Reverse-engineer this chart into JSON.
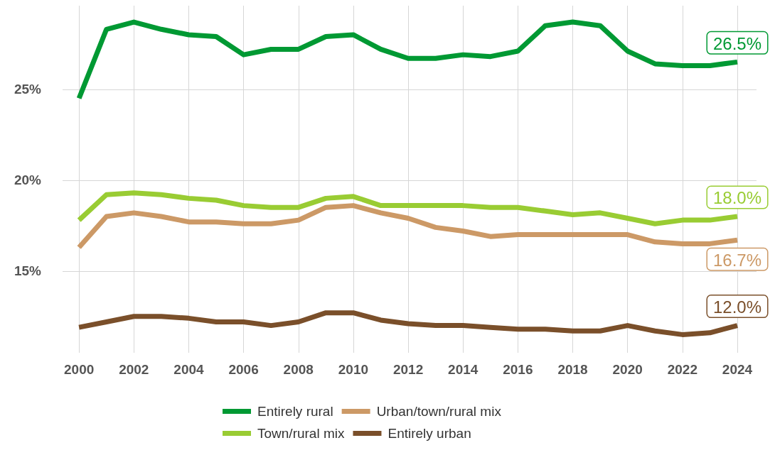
{
  "chart_data": {
    "type": "line",
    "x": [
      2000,
      2001,
      2002,
      2003,
      2004,
      2005,
      2006,
      2007,
      2008,
      2009,
      2010,
      2011,
      2012,
      2013,
      2014,
      2015,
      2016,
      2017,
      2018,
      2019,
      2020,
      2021,
      2022,
      2023,
      2024
    ],
    "series": [
      {
        "name": "Entirely rural",
        "color": "#009933",
        "values": [
          24.5,
          28.3,
          28.7,
          28.3,
          28.0,
          27.9,
          26.9,
          27.2,
          27.2,
          27.9,
          28.0,
          27.2,
          26.7,
          26.7,
          26.9,
          26.8,
          27.1,
          28.5,
          28.7,
          28.5,
          27.1,
          26.4,
          26.3,
          26.3,
          26.5
        ],
        "value_labels": [
          null,
          null,
          null,
          null,
          null,
          null,
          null,
          null,
          null,
          null,
          null,
          null,
          null,
          null,
          null,
          null,
          null,
          null,
          null,
          null,
          null,
          null,
          null,
          null,
          "26.5%"
        ]
      },
      {
        "name": "Urban/town/rural mix",
        "color": "#cc9966",
        "values": [
          16.3,
          18.0,
          18.2,
          18.0,
          17.7,
          17.7,
          17.6,
          17.6,
          17.8,
          18.5,
          18.6,
          18.2,
          17.9,
          17.4,
          17.2,
          16.9,
          17.0,
          17.0,
          17.0,
          17.0,
          17.0,
          16.6,
          16.5,
          16.5,
          16.7
        ],
        "value_labels": [
          null,
          null,
          null,
          null,
          null,
          null,
          null,
          null,
          null,
          null,
          null,
          null,
          null,
          null,
          null,
          null,
          null,
          null,
          null,
          null,
          null,
          null,
          null,
          null,
          "16.7%"
        ]
      },
      {
        "name": "Town/rural mix",
        "color": "#99cc33",
        "values": [
          17.8,
          19.2,
          19.3,
          19.2,
          19.0,
          18.9,
          18.6,
          18.5,
          18.5,
          19.0,
          19.1,
          18.6,
          18.6,
          18.6,
          18.6,
          18.5,
          18.5,
          18.3,
          18.1,
          18.2,
          17.9,
          17.6,
          17.8,
          17.8,
          18.0
        ],
        "value_labels": [
          null,
          null,
          null,
          null,
          null,
          null,
          null,
          null,
          null,
          null,
          null,
          null,
          null,
          null,
          null,
          null,
          null,
          null,
          null,
          null,
          null,
          null,
          null,
          null,
          "18.0%"
        ]
      },
      {
        "name": "Entirely urban",
        "color": "#7a4f2a",
        "values": [
          11.9,
          12.2,
          12.5,
          12.5,
          12.4,
          12.2,
          12.2,
          12.0,
          12.2,
          12.7,
          12.7,
          12.3,
          12.1,
          12.0,
          12.0,
          11.9,
          11.8,
          11.8,
          11.7,
          11.7,
          12.0,
          11.7,
          11.5,
          11.6,
          12.0
        ],
        "value_labels": [
          null,
          null,
          null,
          null,
          null,
          null,
          null,
          null,
          null,
          null,
          null,
          null,
          null,
          null,
          null,
          null,
          null,
          null,
          null,
          null,
          null,
          null,
          null,
          null,
          "12.0%"
        ]
      }
    ],
    "xlim": [
      1999.4,
      2024.7
    ],
    "xticks": [
      2000,
      2002,
      2004,
      2006,
      2008,
      2010,
      2012,
      2014,
      2016,
      2018,
      2020,
      2022,
      2024
    ],
    "ylim": [
      10.5,
      29.6
    ],
    "yticks": [
      {
        "value": 15,
        "label": "15%"
      },
      {
        "value": 20,
        "label": "20%"
      },
      {
        "value": 25,
        "label": "25%"
      }
    ],
    "grid": true,
    "legend": "bottom",
    "marker": "none",
    "line_style": "solid"
  }
}
